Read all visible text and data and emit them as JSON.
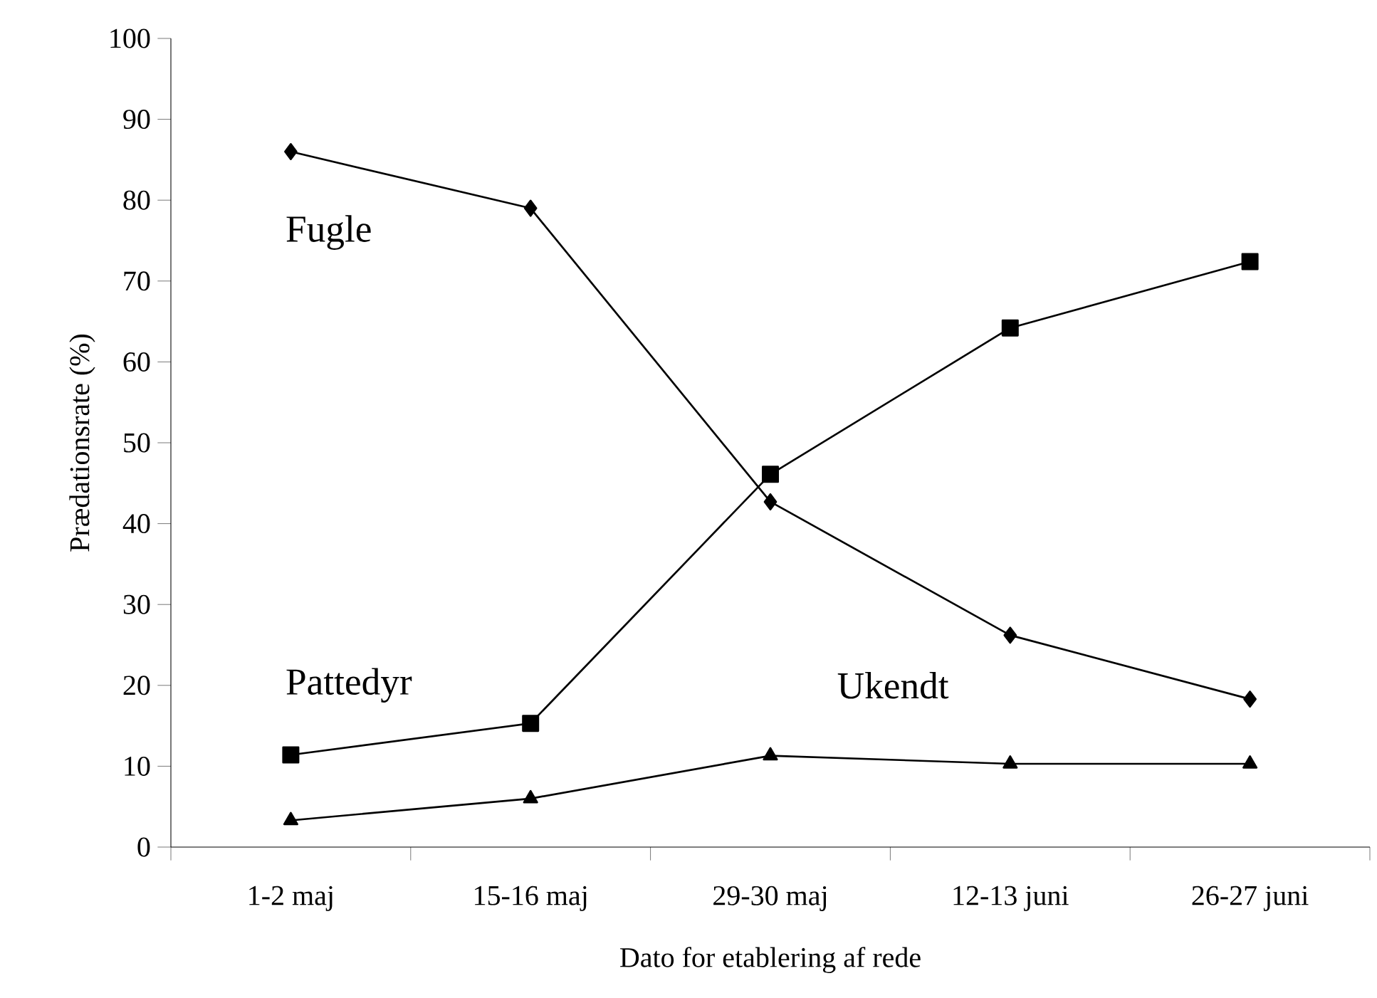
{
  "chart_data": {
    "type": "line",
    "xlabel": "Dato for etablering af rede",
    "ylabel": "Prædationsrate (%)",
    "categories": [
      "1-2 maj",
      "15-16 maj",
      "29-30 maj",
      "12-13 juni",
      "26-27 juni"
    ],
    "ylim": [
      0,
      100
    ],
    "yticks": [
      0,
      10,
      20,
      30,
      40,
      50,
      60,
      70,
      80,
      90,
      100
    ],
    "grid": false,
    "legend": false,
    "line_style": "solid",
    "series": [
      {
        "name": "Fugle",
        "color": "#000000",
        "marker": "diamond",
        "values": [
          86,
          79,
          42.7,
          26.2,
          18.3
        ]
      },
      {
        "name": "Pattedyr",
        "color": "#000000",
        "marker": "square",
        "values": [
          11.4,
          15.3,
          46.1,
          64.2,
          72.4
        ]
      },
      {
        "name": "Ukendt",
        "color": "#000000",
        "marker": "triangle",
        "values": [
          3.3,
          6.0,
          11.3,
          10.3,
          10.3
        ]
      }
    ]
  }
}
